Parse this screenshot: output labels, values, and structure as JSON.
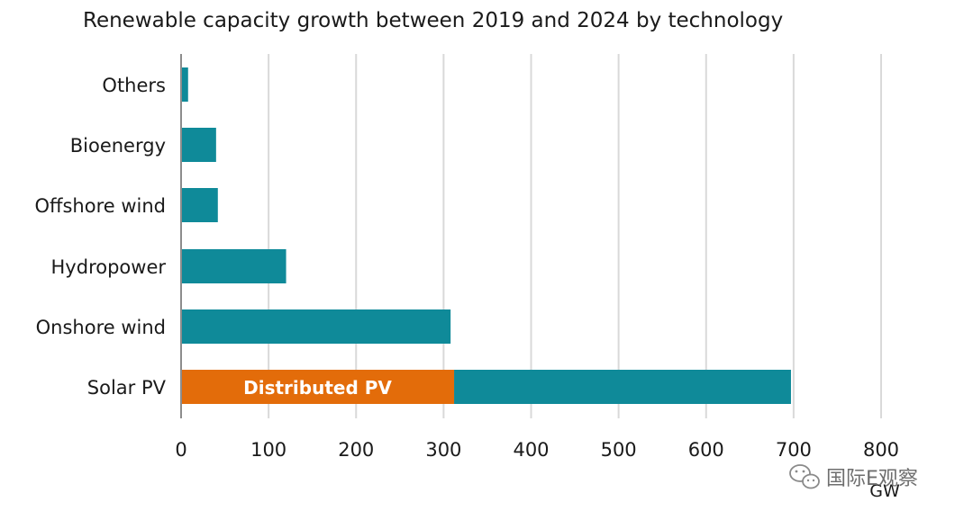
{
  "chart_data": {
    "type": "bar",
    "orientation": "horizontal",
    "stacked": true,
    "title": "Renewable capacity growth between 2019 and 2024 by technology",
    "categories": [
      "Others",
      "Bioenergy",
      "Offshore wind",
      "Hydropower",
      "Onshore wind",
      "Solar PV"
    ],
    "series": [
      {
        "name": "Distributed PV",
        "values": [
          0,
          0,
          0,
          0,
          0,
          312
        ],
        "color": "#e36c0a"
      },
      {
        "values": [
          8,
          40,
          42,
          120,
          308,
          385
        ],
        "color": "#0f8a99"
      }
    ],
    "xlim": [
      0,
      800
    ],
    "x_ticks": [
      0,
      100,
      200,
      300,
      400,
      500,
      600,
      700,
      800
    ],
    "xlabel": "GW",
    "ylabel": "",
    "grid": "vertical",
    "legend": "none"
  },
  "watermark": {
    "text": "国际E观察",
    "icon": "wechat-icon"
  }
}
